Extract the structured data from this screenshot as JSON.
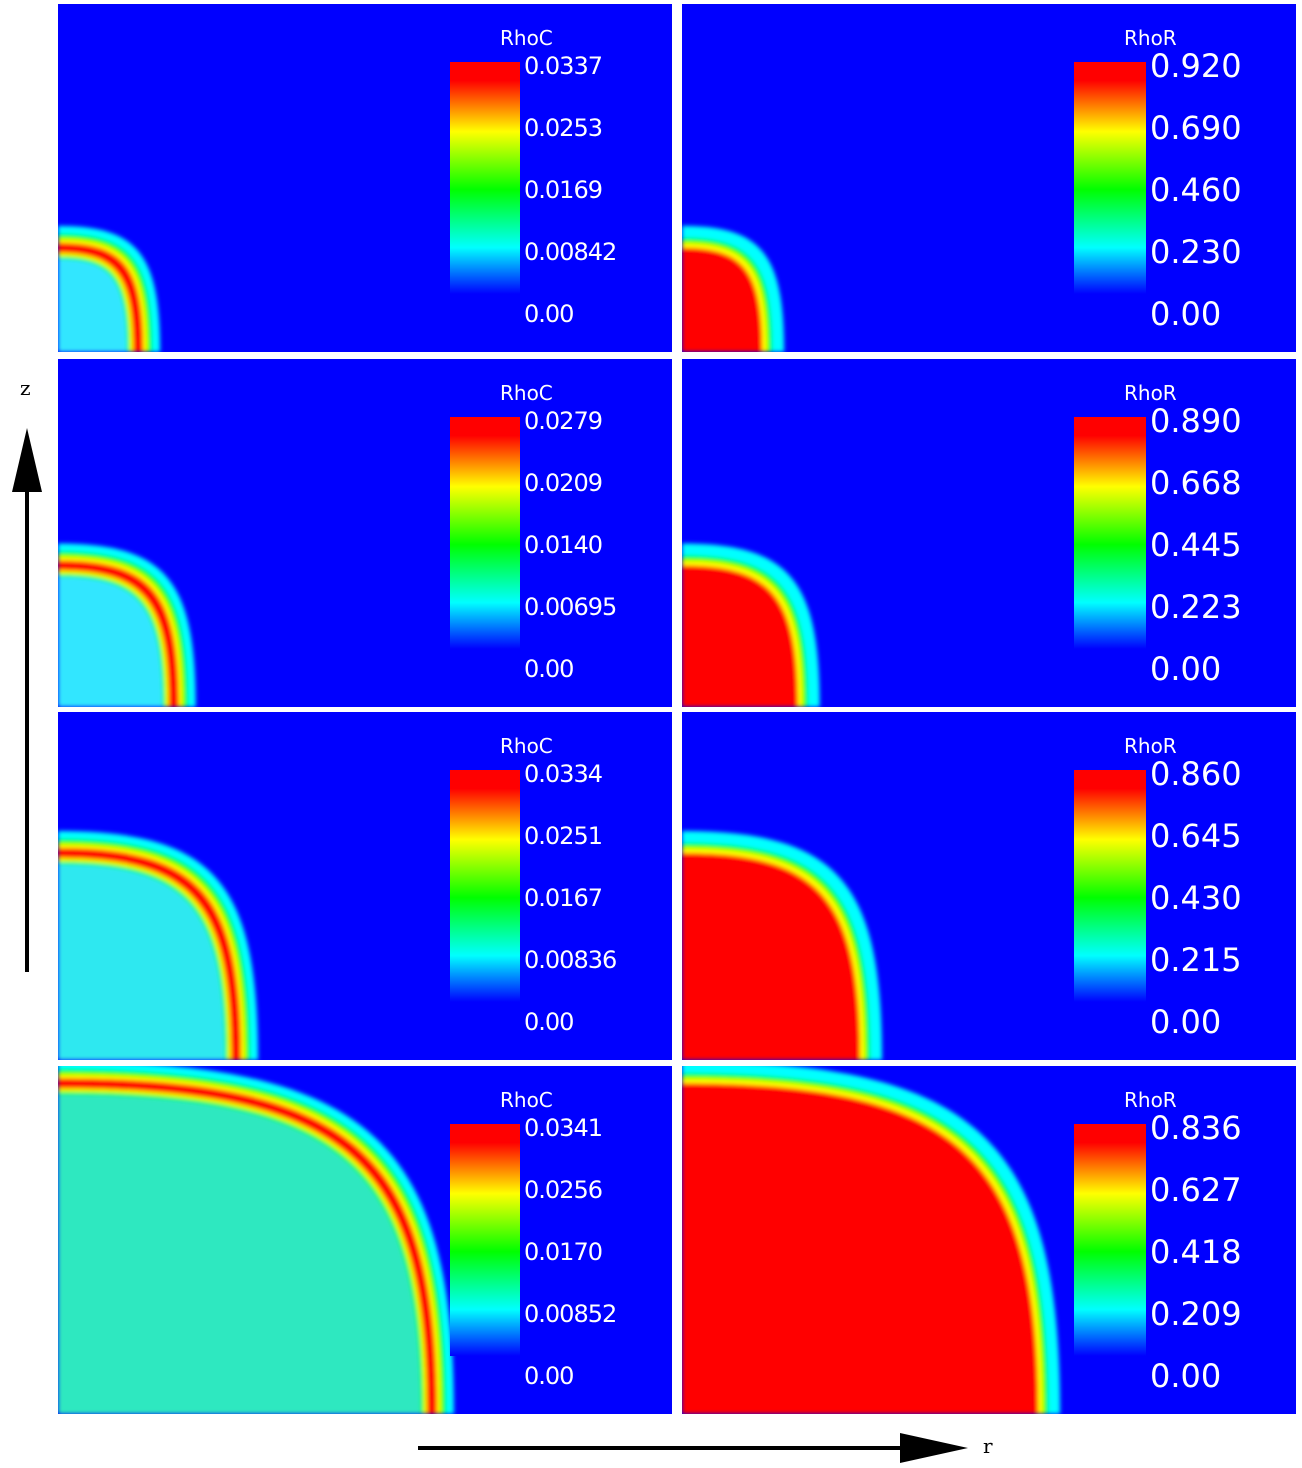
{
  "axes": {
    "z_label": "z",
    "r_label": "r"
  },
  "colormap": [
    "#0000ff",
    "#00ffff",
    "#00ff00",
    "#ffff00",
    "#ff0000"
  ],
  "chart_data": [
    {
      "type": "heatmap",
      "variable": "RhoC",
      "title": "RhoC",
      "row": 1,
      "col": 1,
      "field": "ring",
      "interior": "#33e6ff",
      "ring_r": 0.09,
      "ticks": [
        "0.0337",
        "0.0253",
        "0.0169",
        "0.00842",
        "0.00"
      ]
    },
    {
      "type": "heatmap",
      "variable": "RhoR",
      "title": "RhoR",
      "row": 1,
      "col": 2,
      "field": "filled",
      "ring_r": 0.09,
      "ticks": [
        "0.920",
        "0.690",
        "0.460",
        "0.230",
        "0.00"
      ]
    },
    {
      "type": "heatmap",
      "variable": "RhoC",
      "title": "RhoC",
      "row": 2,
      "col": 1,
      "field": "ring",
      "interior": "#33e6ff",
      "ring_r": 0.13,
      "ticks": [
        "0.0279",
        "0.0209",
        "0.0140",
        "0.00695",
        "0.00"
      ]
    },
    {
      "type": "heatmap",
      "variable": "RhoR",
      "title": "RhoR",
      "row": 2,
      "col": 2,
      "field": "filled",
      "ring_r": 0.13,
      "ticks": [
        "0.890",
        "0.668",
        "0.445",
        "0.223",
        "0.00"
      ]
    },
    {
      "type": "heatmap",
      "variable": "RhoC",
      "title": "RhoC",
      "row": 3,
      "col": 1,
      "field": "ring",
      "interior": "#2ee8f0",
      "ring_r": 0.2,
      "ticks": [
        "0.0334",
        "0.0251",
        "0.0167",
        "0.00836",
        "0.00"
      ]
    },
    {
      "type": "heatmap",
      "variable": "RhoR",
      "title": "RhoR",
      "row": 3,
      "col": 2,
      "field": "filled",
      "ring_r": 0.2,
      "ticks": [
        "0.860",
        "0.645",
        "0.430",
        "0.215",
        "0.00"
      ]
    },
    {
      "type": "heatmap",
      "variable": "RhoC",
      "title": "RhoC",
      "row": 4,
      "col": 1,
      "field": "ring",
      "interior": "#2ee8c0",
      "ring_r": 0.42,
      "ticks": [
        "0.0341",
        "0.0256",
        "0.0170",
        "0.00852",
        "0.00"
      ]
    },
    {
      "type": "heatmap",
      "variable": "RhoR",
      "title": "RhoR",
      "row": 4,
      "col": 2,
      "field": "filled",
      "ring_r": 0.4,
      "ticks": [
        "0.836",
        "0.627",
        "0.418",
        "0.209",
        "0.00"
      ]
    }
  ]
}
